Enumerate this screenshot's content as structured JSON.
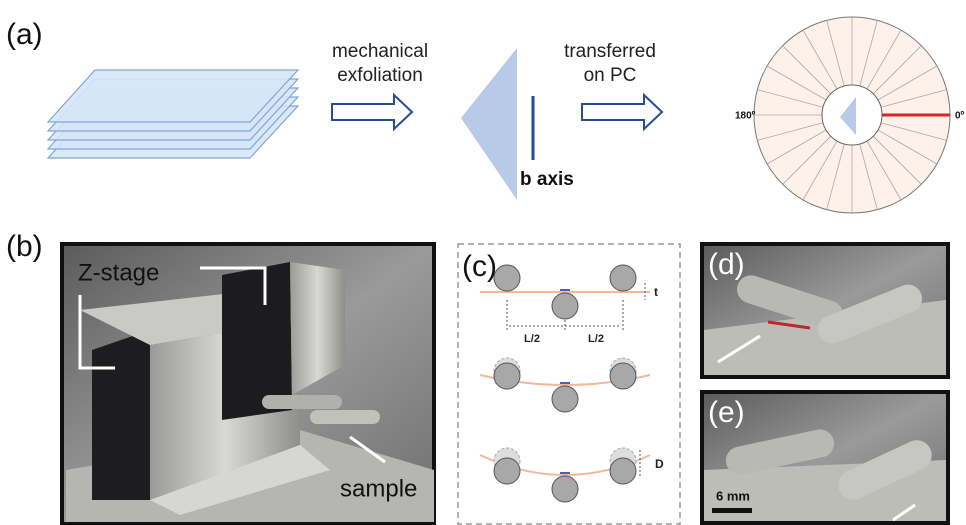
{
  "panel_a": {
    "label": "(a)",
    "arrow1_text": [
      "mechanical",
      "exfoliation"
    ],
    "arrow2_text": [
      "transferred",
      "on PC"
    ],
    "crystal_label": "b axis",
    "angle_left": "180º",
    "angle_right": "0º"
  },
  "panel_b": {
    "label": "(b)",
    "zstage": "Z-stage",
    "sample": "sample"
  },
  "panel_c": {
    "label": "(c)",
    "thickness": "t",
    "half_span_left": "L/2",
    "half_span_right": "L/2",
    "deflection": "D"
  },
  "panel_d": {
    "label": "(d)"
  },
  "panel_e": {
    "label": "(e)",
    "scale_bar": "6 mm"
  }
}
